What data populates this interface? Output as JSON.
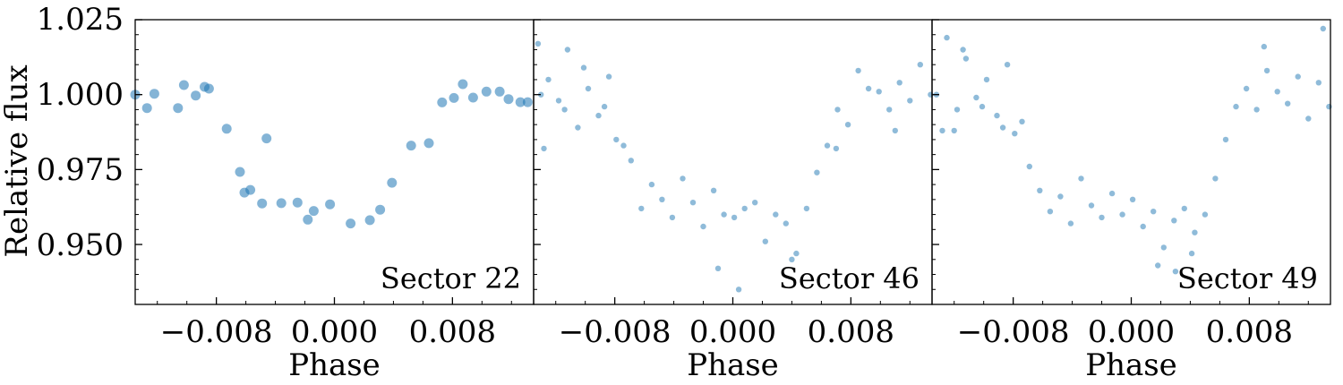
{
  "figure": {
    "ylabel": "Relative flux",
    "ytick_labels": [
      "1.025",
      "1.000",
      "0.975",
      "0.950"
    ]
  },
  "chart_data": [
    {
      "type": "scatter",
      "panel_label": "Sector 22",
      "xlabel": "Phase",
      "ylabel": "Relative flux",
      "xlim": [
        -0.0135,
        0.0135
      ],
      "ylim": [
        0.93,
        1.025
      ],
      "xticks": [
        -0.008,
        0.0,
        0.008
      ],
      "xtick_labels": [
        "−0.008",
        "0.000",
        "0.008"
      ],
      "yticks": [
        1.025,
        1.0,
        0.975,
        0.95
      ],
      "marker_color": "#1f77b4",
      "marker_size": "large",
      "legend": "none",
      "grid": false,
      "series": [
        {
          "x": [
            -0.0135,
            -0.0127,
            -0.0122,
            -0.0106,
            -0.0102,
            -0.0094,
            -0.0088,
            -0.0085,
            -0.0073,
            -0.0064,
            -0.0061,
            -0.0057,
            -0.0049,
            -0.0046,
            -0.0036,
            -0.0025,
            -0.0018,
            -0.0014,
            -0.0003,
            0.0011,
            0.0024,
            0.0031,
            0.0039,
            0.0052,
            0.0064,
            0.0073,
            0.0081,
            0.0087,
            0.0094,
            0.0103,
            0.0112,
            0.0118,
            0.0126,
            0.0131
          ],
          "y": [
            1.0,
            0.9955,
            1.0003,
            0.9955,
            1.0032,
            0.9997,
            1.0026,
            1.002,
            0.9886,
            0.9742,
            0.9673,
            0.9682,
            0.9637,
            0.9854,
            0.9638,
            0.964,
            0.9583,
            0.9612,
            0.9634,
            0.957,
            0.9581,
            0.9616,
            0.9706,
            0.983,
            0.9838,
            0.9974,
            0.9989,
            1.0035,
            0.999,
            1.001,
            1.001,
            0.9985,
            0.9975,
            0.9975
          ]
        }
      ]
    },
    {
      "type": "scatter",
      "panel_label": "Sector 46",
      "xlabel": "Phase",
      "xlim": [
        -0.0135,
        0.0135
      ],
      "ylim": [
        0.93,
        1.025
      ],
      "xticks": [
        -0.008,
        0.0,
        0.008
      ],
      "xtick_labels": [
        "−0.008",
        "0.000",
        "0.008"
      ],
      "marker_color": "#1f77b4",
      "marker_size": "small",
      "legend": "none",
      "grid": false,
      "series": [
        {
          "x": [
            -0.0132,
            -0.0125,
            -0.0118,
            -0.0112,
            -0.0105,
            -0.0098,
            -0.0091,
            -0.0084,
            -0.0079,
            -0.0074,
            -0.0128,
            -0.0114,
            -0.0101,
            -0.0087,
            -0.0069,
            -0.0062,
            -0.0055,
            -0.0048,
            -0.0041,
            -0.0034,
            -0.0027,
            -0.002,
            -0.0013,
            -0.0006,
            0.0001,
            0.0008,
            0.0015,
            0.0022,
            0.0029,
            0.0036,
            0.0043,
            0.005,
            0.0057,
            0.0064,
            0.0071,
            0.0078,
            0.0085,
            0.0092,
            0.0099,
            0.0106,
            0.0113,
            0.012,
            0.0127,
            0.0134,
            0.0004,
            -0.001,
            0.004,
            0.007,
            0.011,
            -0.013
          ],
          "y": [
            1.017,
            1.005,
            0.998,
            1.015,
            0.989,
            1.002,
            0.993,
            1.006,
            0.985,
            0.983,
            0.982,
            0.995,
            1.009,
            0.996,
            0.978,
            0.962,
            0.97,
            0.965,
            0.959,
            0.972,
            0.964,
            0.956,
            0.968,
            0.96,
            0.959,
            0.962,
            0.964,
            0.951,
            0.96,
            0.957,
            0.947,
            0.962,
            0.974,
            0.983,
            0.995,
            0.99,
            1.008,
            1.002,
            1.001,
            0.995,
            1.004,
            0.998,
            1.01,
            1.0,
            0.935,
            0.942,
            0.945,
            0.982,
            0.988,
            1.0
          ]
        }
      ]
    },
    {
      "type": "scatter",
      "panel_label": "Sector 49",
      "xlabel": "Phase",
      "xlim": [
        -0.0135,
        0.0135
      ],
      "ylim": [
        0.93,
        1.025
      ],
      "xticks": [
        -0.008,
        0.0,
        0.008
      ],
      "xtick_labels": [
        "−0.008",
        "0.000",
        "0.008"
      ],
      "marker_color": "#1f77b4",
      "marker_size": "small",
      "legend": "none",
      "grid": false,
      "series": [
        {
          "x": [
            -0.0132,
            -0.0125,
            -0.0118,
            -0.0112,
            -0.0105,
            -0.0098,
            -0.0091,
            -0.0084,
            -0.0079,
            -0.0074,
            -0.0128,
            -0.0114,
            -0.0101,
            -0.0087,
            -0.0069,
            -0.0062,
            -0.0055,
            -0.0048,
            -0.0041,
            -0.0034,
            -0.0027,
            -0.002,
            -0.0013,
            -0.0006,
            0.0001,
            0.0008,
            0.0015,
            0.0022,
            0.0029,
            0.0036,
            0.0043,
            0.005,
            0.0057,
            0.0064,
            0.0071,
            0.0078,
            0.0085,
            0.0092,
            0.0099,
            0.0106,
            0.0113,
            0.012,
            0.0127,
            0.0134,
            0.0018,
            0.003,
            0.0041,
            0.009,
            0.013,
            -0.012
          ],
          "y": [
            1.0,
            1.019,
            0.995,
            1.012,
            0.999,
            1.005,
            0.993,
            1.01,
            0.987,
            0.991,
            0.988,
            1.015,
            0.996,
            0.989,
            0.976,
            0.968,
            0.961,
            0.966,
            0.957,
            0.972,
            0.963,
            0.959,
            0.967,
            0.96,
            0.965,
            0.956,
            0.961,
            0.949,
            0.958,
            0.962,
            0.954,
            0.96,
            0.972,
            0.985,
            0.996,
            1.002,
            0.995,
            1.008,
            1.001,
            0.997,
            1.006,
            0.992,
            1.004,
            0.996,
            0.943,
            0.941,
            0.947,
            1.016,
            1.022,
            0.988
          ]
        }
      ]
    }
  ]
}
